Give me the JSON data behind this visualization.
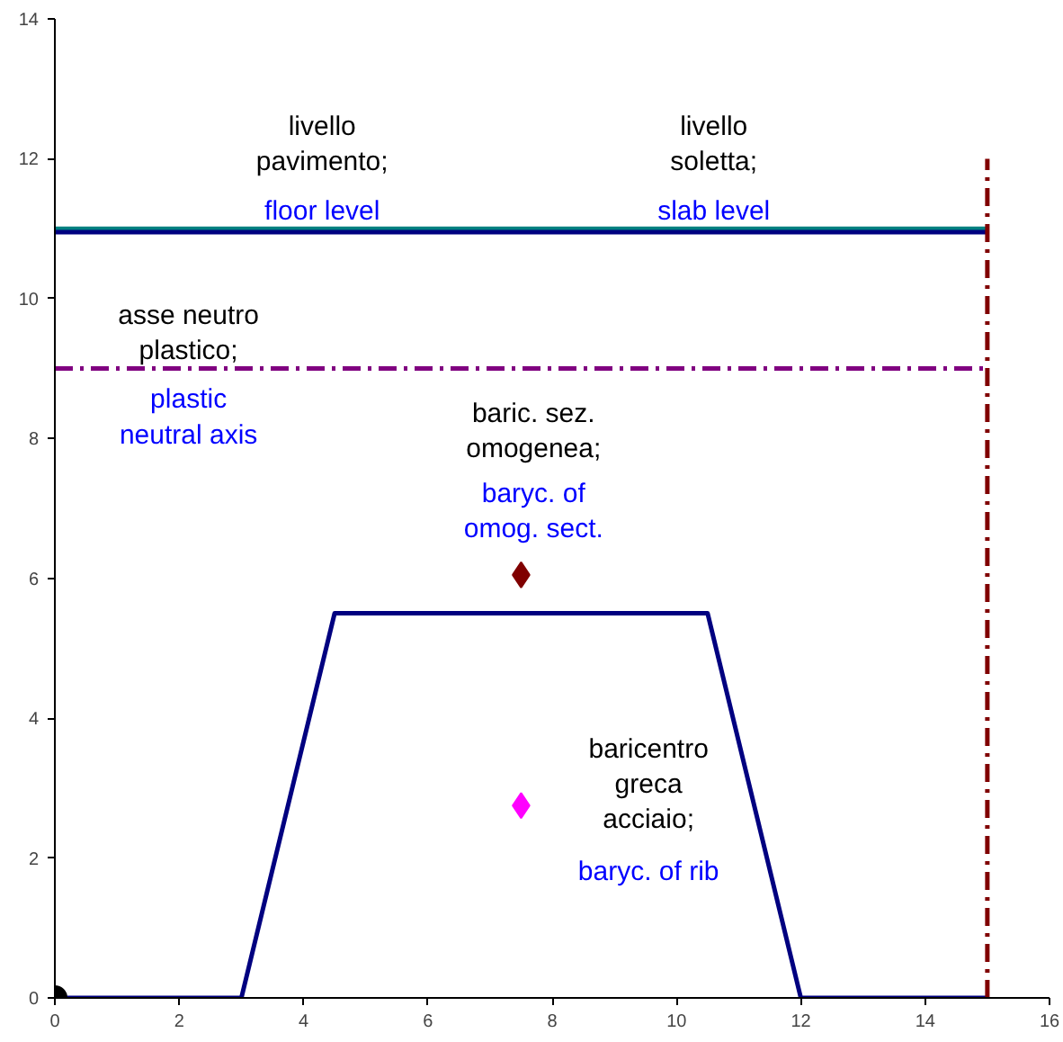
{
  "chart_data": {
    "type": "line",
    "xlim": [
      0,
      16
    ],
    "ylim": [
      0,
      14
    ],
    "xticks": [
      0,
      2,
      4,
      6,
      8,
      10,
      12,
      14,
      16
    ],
    "yticks": [
      0,
      2,
      4,
      6,
      8,
      10,
      12,
      14
    ],
    "grid": false,
    "series": [
      {
        "color": "#000080",
        "x": [
          0,
          3,
          4.5,
          10.5,
          12,
          15
        ],
        "values": [
          0,
          0,
          5.5,
          5.5,
          0,
          0
        ],
        "line_style": "solid",
        "marker": "none"
      },
      {
        "color": "#008080",
        "x": [
          0,
          15
        ],
        "values": [
          11,
          11
        ],
        "line_style": "solid",
        "marker": "none"
      },
      {
        "color": "#000080",
        "x": [
          0,
          15
        ],
        "values": [
          10.95,
          10.95
        ],
        "line_style": "solid",
        "marker": "none"
      },
      {
        "color": "#800080",
        "x": [
          0,
          15
        ],
        "values": [
          9,
          9
        ],
        "line_style": "dashdot",
        "marker": "none"
      },
      {
        "color": "#800000",
        "x": [
          15,
          15
        ],
        "values": [
          0,
          12
        ],
        "line_style": "dashdot",
        "marker": "none"
      },
      {
        "type": "scatter",
        "color": "#000000",
        "x": [
          0
        ],
        "values": [
          0
        ],
        "marker": "circle"
      },
      {
        "type": "scatter",
        "color": "#800000",
        "x": [
          7.5
        ],
        "values": [
          6.05
        ],
        "marker": "diamond"
      },
      {
        "type": "scatter",
        "color": "#ff00ff",
        "x": [
          7.5
        ],
        "values": [
          2.75
        ],
        "marker": "diamond"
      }
    ],
    "annotations": [
      "livello\npavimento;",
      "floor level",
      "livello\nsoletta;",
      "slab level",
      "asse neutro\nplastico;",
      "plastic\nneutral axis",
      "baric. sez.\nomogenea;",
      "baryc. of\nomog. sect.",
      "baricentro\ngreca\nacciaio;",
      "baryc. of rib"
    ]
  }
}
